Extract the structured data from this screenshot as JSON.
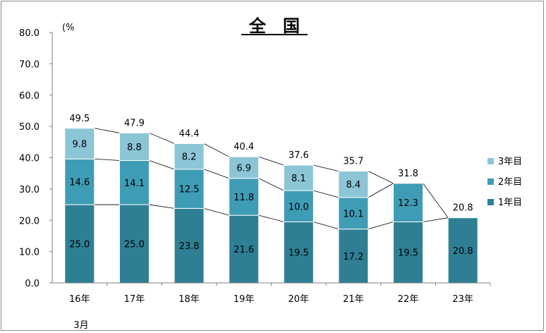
{
  "chart_data": {
    "type": "bar",
    "stacked": true,
    "title": "全　国",
    "yunit": "(%",
    "ylim": [
      0,
      80
    ],
    "yticks": [
      "0.0",
      "10.0",
      "20.0",
      "30.0",
      "40.0",
      "50.0",
      "60.0",
      "70.0",
      "80.0"
    ],
    "categories": [
      "16年",
      "17年",
      "18年",
      "19年",
      "20年",
      "21年",
      "22年",
      "23年"
    ],
    "category_sublabel": "3月",
    "series": [
      {
        "name": "1年目",
        "color": "#2e7f94",
        "values": [
          25.0,
          25.0,
          23.8,
          21.6,
          19.5,
          17.2,
          19.5,
          20.8
        ]
      },
      {
        "name": "2年目",
        "color": "#3f9cb5",
        "values": [
          14.6,
          14.1,
          12.5,
          11.8,
          10.0,
          10.1,
          12.3,
          null
        ]
      },
      {
        "name": "3年目",
        "color": "#8cc5d6",
        "values": [
          9.8,
          8.8,
          8.2,
          6.9,
          8.1,
          8.4,
          null,
          null
        ]
      }
    ],
    "totals": [
      49.5,
      47.9,
      44.4,
      40.4,
      37.6,
      35.7,
      31.8,
      20.8
    ],
    "legend": {
      "position": "right",
      "order": [
        "3年目",
        "2年目",
        "1年目"
      ]
    },
    "grid": false,
    "series_lines": true
  }
}
